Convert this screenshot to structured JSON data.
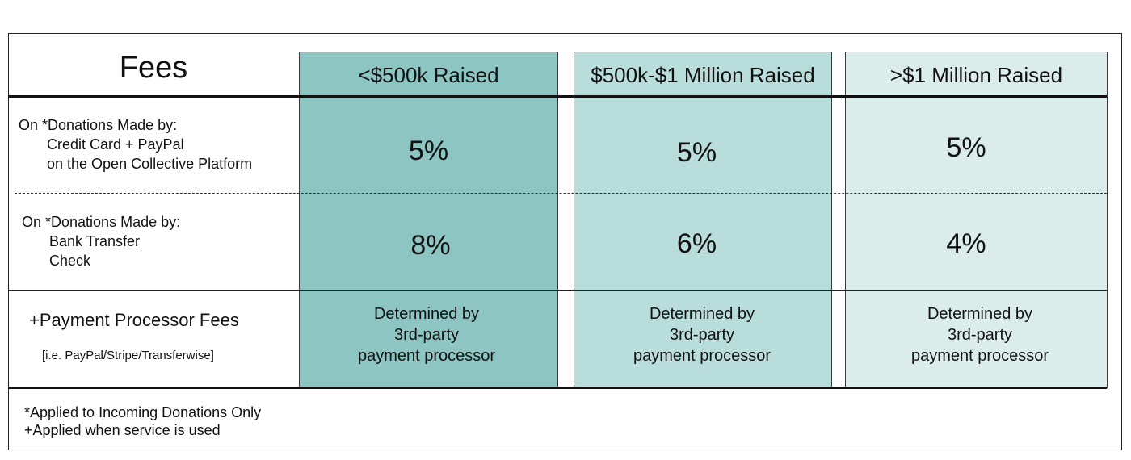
{
  "title": "Fees",
  "columns": [
    {
      "label": "<$500k Raised",
      "color": "#8cc5c1"
    },
    {
      "label": "$500k-$1 Million Raised",
      "color": "#b9ddda"
    },
    {
      "label": ">$1 Million Raised",
      "color": "#dbedeb"
    }
  ],
  "rows": {
    "card": {
      "line1": "On *Donations Made by:",
      "line2": "Credit Card + PayPal",
      "line3": "on the Open Collective Platform",
      "values": [
        "5%",
        "5%",
        "5%"
      ]
    },
    "bank": {
      "line1": "On *Donations Made by:",
      "line2": "Bank Transfer",
      "line3": "Check",
      "values": [
        "8%",
        "6%",
        "4%"
      ]
    },
    "processor": {
      "label": "+Payment Processor Fees",
      "sub": "[i.e. PayPal/Stripe/Transferwise]",
      "values": [
        [
          "Determined by",
          "3rd-party",
          "payment processor"
        ],
        [
          "Determined by",
          "3rd-party",
          "payment processor"
        ],
        [
          "Determined by",
          "3rd-party",
          "payment processor"
        ]
      ]
    }
  },
  "notes": [
    "*Applied to Incoming Donations Only",
    "+Applied when service is used"
  ]
}
